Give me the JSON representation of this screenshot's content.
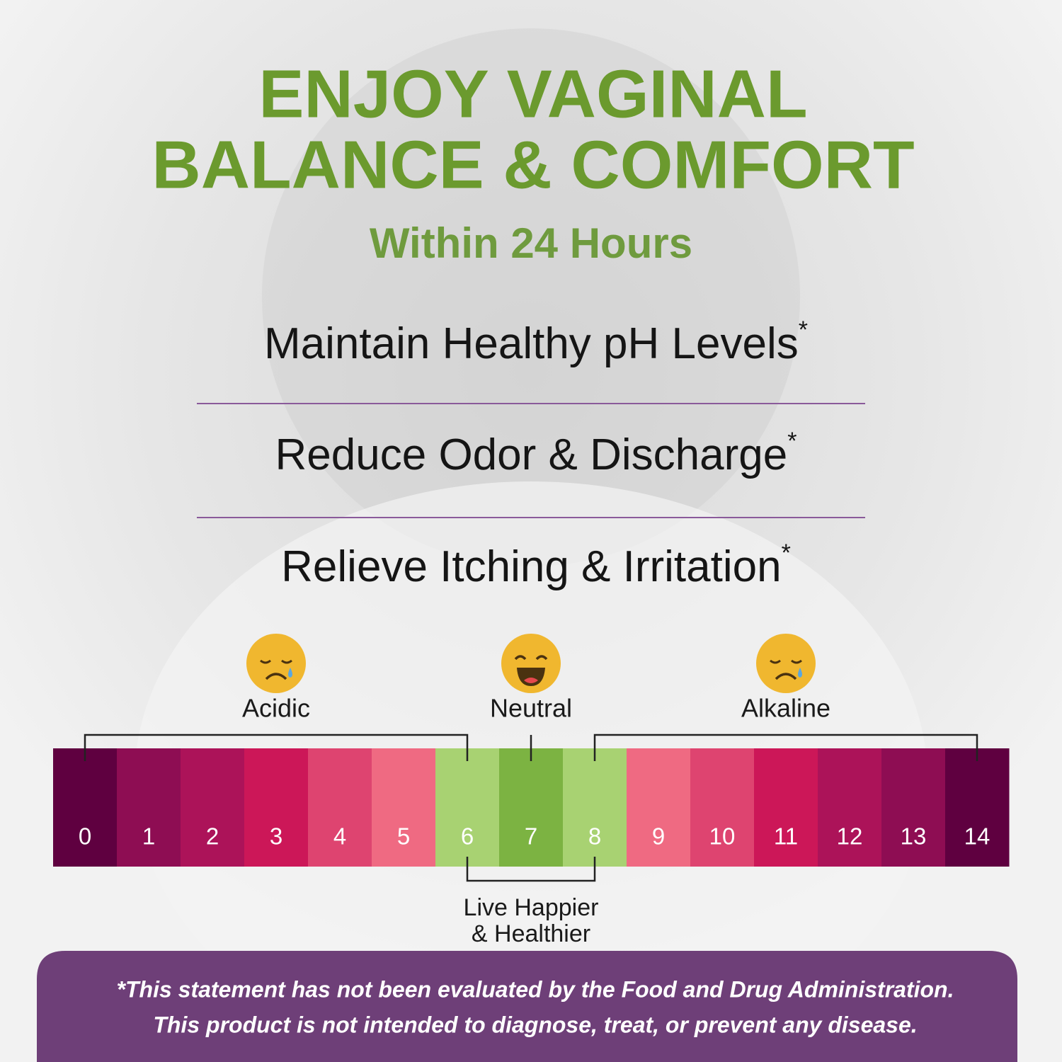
{
  "header": {
    "title_lines": [
      "ENJOY VAGINAL",
      "BALANCE & COMFORT"
    ],
    "subtitle": "Within 24 Hours"
  },
  "benefits": [
    {
      "text": "Maintain Healthy pH Levels",
      "mark": "*"
    },
    {
      "text": "Reduce Odor & Discharge",
      "mark": "*"
    },
    {
      "text": "Relieve Itching & Irritation",
      "mark": "*"
    }
  ],
  "scale": {
    "groups": [
      "Acidic",
      "Neutral",
      "Alkaline"
    ],
    "levels": [
      "0",
      "1",
      "2",
      "3",
      "4",
      "5",
      "6",
      "7",
      "8",
      "9",
      "10",
      "11",
      "12",
      "13",
      "14"
    ],
    "note_lines": [
      "Live Happier",
      "& Healthier"
    ]
  },
  "disclaimer": [
    "*This statement has not been evaluated by the Food and Drug Administration.",
    "This product is not intended to diagnose, treat, or prevent any disease."
  ]
}
